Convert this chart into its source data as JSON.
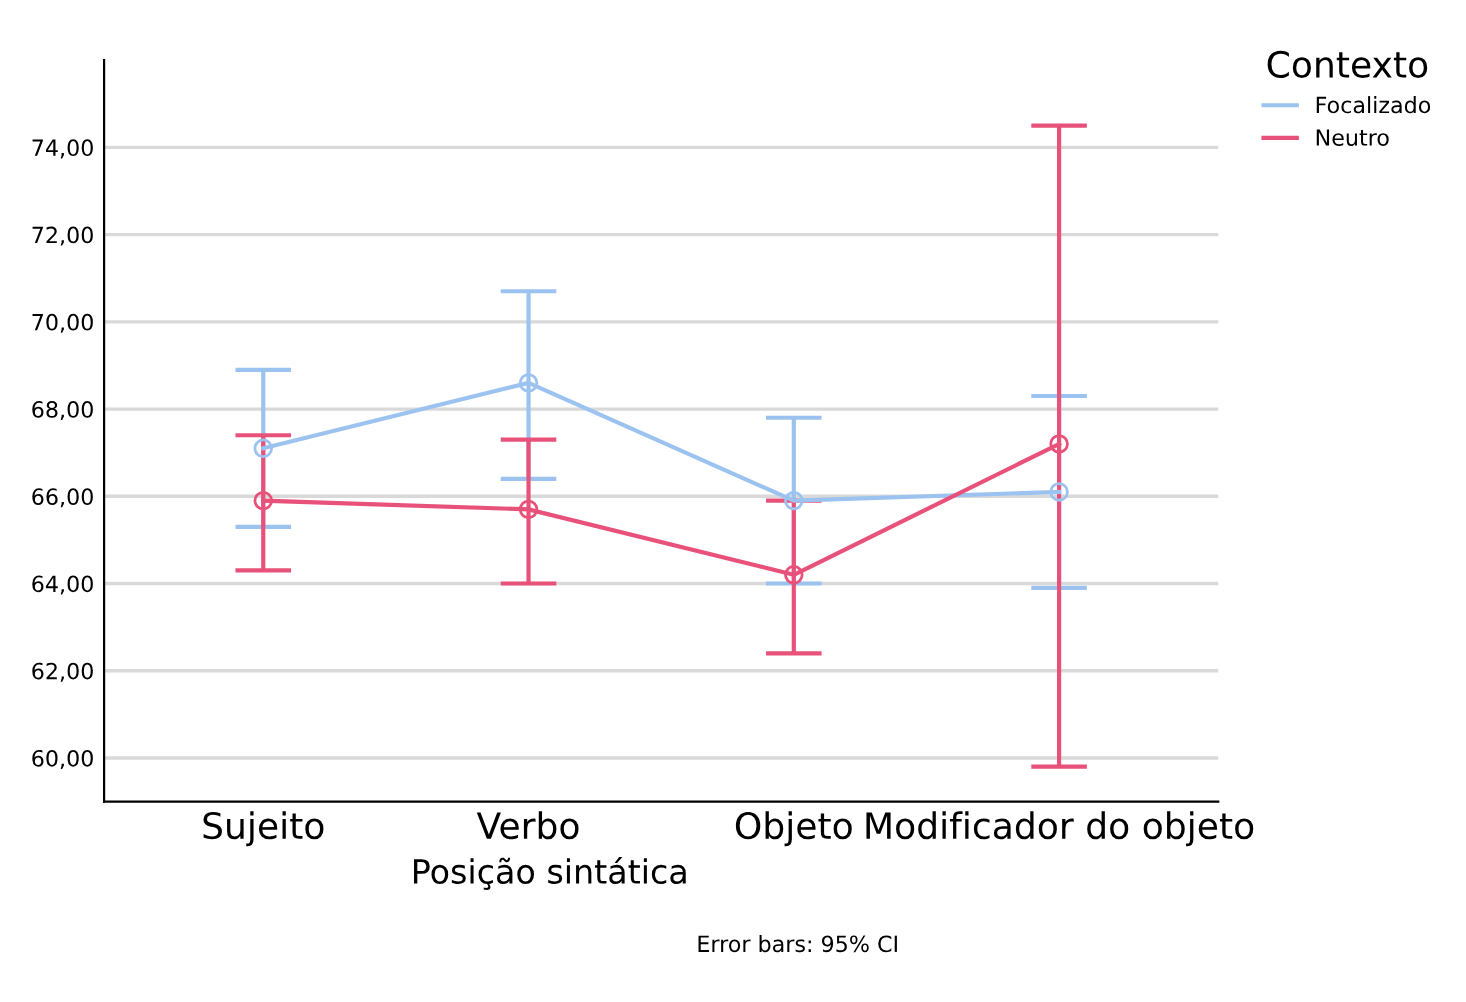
{
  "chart_data": {
    "type": "line",
    "xlabel": "Posição sintática",
    "legend_title": "Contexto",
    "annotations": [
      "Error bars: 95% CI"
    ],
    "categories": [
      "Sujeito",
      "Verbo",
      "Objeto",
      "Modificador do objeto"
    ],
    "series": [
      {
        "name": "Focalizado",
        "color": "#9cc3f0",
        "values": [
          67.1,
          68.6,
          65.9,
          66.1
        ],
        "errors": [
          [
            65.3,
            68.9
          ],
          [
            66.4,
            70.7
          ],
          [
            64.0,
            67.8
          ],
          [
            63.9,
            68.3
          ]
        ]
      },
      {
        "name": "Neutro",
        "color": "#e8517a",
        "values": [
          65.9,
          65.7,
          64.2,
          67.2
        ],
        "errors": [
          [
            64.3,
            67.4
          ],
          [
            64.0,
            67.3
          ],
          [
            62.4,
            65.9
          ],
          [
            59.8,
            74.5
          ]
        ]
      }
    ],
    "ylim": [
      59,
      76
    ],
    "yticks": [
      {
        "value": 60,
        "label": "60,00"
      },
      {
        "value": 62,
        "label": "62,00"
      },
      {
        "value": 64,
        "label": "64,00"
      },
      {
        "value": 66,
        "label": "66,00"
      },
      {
        "value": 68,
        "label": "68,00"
      },
      {
        "value": 70,
        "label": "70,00"
      },
      {
        "value": 72,
        "label": "72,00"
      },
      {
        "value": 74,
        "label": "74,00"
      }
    ],
    "grid": "y",
    "legend": "top right",
    "marker": "circle",
    "line_style": "solid"
  }
}
